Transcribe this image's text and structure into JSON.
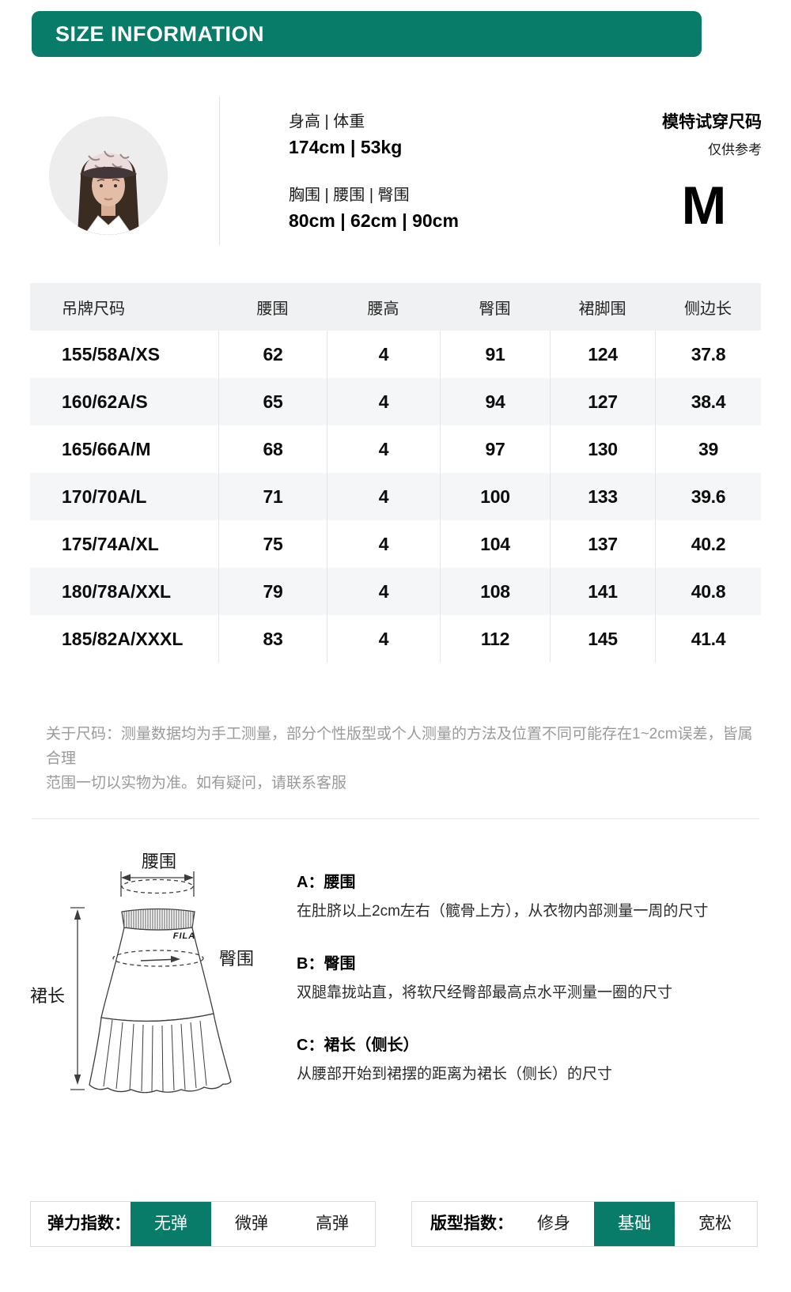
{
  "colors": {
    "accent": "#087c68"
  },
  "header": {
    "title": "SIZE INFORMATION"
  },
  "model": {
    "height_weight_label": "身高 | 体重",
    "height_weight_value": "174cm | 53kg",
    "bwh_label": "胸围 | 腰围 | 臀围",
    "bwh_value": "80cm | 62cm | 90cm",
    "fitting_label": "模特试穿尺码",
    "fitting_note": "仅供参考",
    "fitting_size": "M"
  },
  "size_table": {
    "columns": [
      "吊牌尺码",
      "腰围",
      "腰高",
      "臀围",
      "裙脚围",
      "侧边长"
    ],
    "rows": [
      [
        "155/58A/XS",
        "62",
        "4",
        "91",
        "124",
        "37.8"
      ],
      [
        "160/62A/S",
        "65",
        "4",
        "94",
        "127",
        "38.4"
      ],
      [
        "165/66A/M",
        "68",
        "4",
        "97",
        "130",
        "39"
      ],
      [
        "170/70A/L",
        "71",
        "4",
        "100",
        "133",
        "39.6"
      ],
      [
        "175/74A/XL",
        "75",
        "4",
        "104",
        "137",
        "40.2"
      ],
      [
        "180/78A/XXL",
        "79",
        "4",
        "108",
        "141",
        "40.8"
      ],
      [
        "185/82A/XXXL",
        "83",
        "4",
        "112",
        "145",
        "41.4"
      ]
    ]
  },
  "note": {
    "line1": "关于尺码：测量数据均为手工测量，部分个性版型或个人测量的方法及位置不同可能存在1~2cm误差，皆属合理",
    "line2": "范围一切以实物为准。如有疑问，请联系客服"
  },
  "diagram": {
    "waist_label": "腰围",
    "hip_label": "臀围",
    "length_label": "裙长",
    "brand": "FILA"
  },
  "measure_guide": [
    {
      "title": "A：腰围",
      "desc": "在肚脐以上2cm左右（髋骨上方），从衣物内部测量一周的尺寸"
    },
    {
      "title": "B：臀围",
      "desc": "双腿靠拢站直，将软尺经臀部最高点水平测量一圈的尺寸"
    },
    {
      "title": "C：裙长（侧长）",
      "desc": "从腰部开始到裙摆的距离为裙长（侧长）的尺寸"
    }
  ],
  "elasticity": {
    "label": "弹力指数：",
    "options": [
      "无弹",
      "微弹",
      "高弹"
    ],
    "selected": "无弹"
  },
  "fit": {
    "label": "版型指数：",
    "options": [
      "修身",
      "基础",
      "宽松"
    ],
    "selected": "基础"
  }
}
